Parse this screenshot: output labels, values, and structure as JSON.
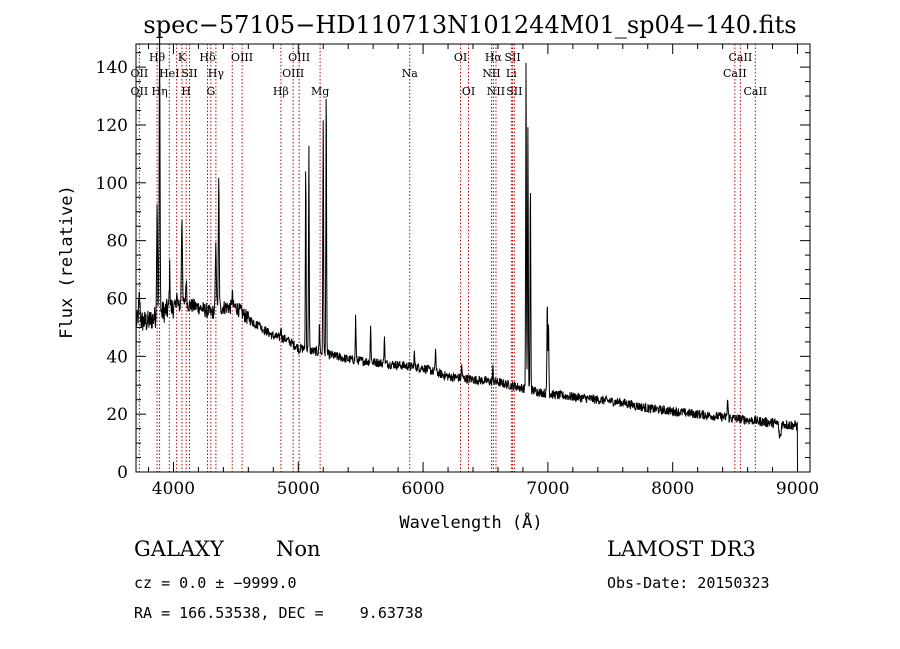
{
  "chart_data": {
    "type": "line",
    "title": "spec−57105−HD110713N101244M01_sp04−140.fits",
    "xlabel": "Wavelength (Å)",
    "ylabel": "Flux (relative)",
    "xlim": [
      3700,
      9100
    ],
    "ylim": [
      0,
      148
    ],
    "xticks": [
      4000,
      5000,
      6000,
      7000,
      8000,
      9000
    ],
    "yticks": [
      0,
      20,
      40,
      60,
      80,
      100,
      120,
      140
    ],
    "x_tick_labels": [
      "4000",
      "5000",
      "6000",
      "7000",
      "8000",
      "9000"
    ],
    "y_tick_labels": [
      "0",
      "20",
      "40",
      "60",
      "80",
      "100",
      "120",
      "140"
    ],
    "continuum": [
      [
        3700,
        52
      ],
      [
        3800,
        52
      ],
      [
        3900,
        55
      ],
      [
        4000,
        57
      ],
      [
        4100,
        58
      ],
      [
        4200,
        57
      ],
      [
        4300,
        55
      ],
      [
        4400,
        57
      ],
      [
        4500,
        57
      ],
      [
        4600,
        53
      ],
      [
        4700,
        50
      ],
      [
        4800,
        47
      ],
      [
        4900,
        46
      ],
      [
        5000,
        43
      ],
      [
        5200,
        41
      ],
      [
        5400,
        39
      ],
      [
        5600,
        38
      ],
      [
        5800,
        37
      ],
      [
        6000,
        36
      ],
      [
        6200,
        33
      ],
      [
        6400,
        32
      ],
      [
        6600,
        31
      ],
      [
        6800,
        29
      ],
      [
        7000,
        27
      ],
      [
        7200,
        26
      ],
      [
        7400,
        25
      ],
      [
        7600,
        24
      ],
      [
        7800,
        22
      ],
      [
        8000,
        21
      ],
      [
        8200,
        20
      ],
      [
        8400,
        19
      ],
      [
        8600,
        18
      ],
      [
        8800,
        17
      ],
      [
        9000,
        16
      ]
    ],
    "emission_peaks": [
      {
        "x": 3727,
        "y": 60,
        "w": 8
      },
      {
        "x": 3869,
        "y": 95,
        "w": 5
      },
      {
        "x": 3889,
        "y": 150,
        "w": 5
      },
      {
        "x": 3970,
        "y": 70,
        "w": 5
      },
      {
        "x": 4026,
        "y": 62,
        "w": 5
      },
      {
        "x": 4068,
        "y": 88,
        "w": 6
      },
      {
        "x": 4102,
        "y": 66,
        "w": 6
      },
      {
        "x": 4340,
        "y": 78,
        "w": 6
      },
      {
        "x": 4363,
        "y": 101,
        "w": 5
      },
      {
        "x": 4471,
        "y": 62,
        "w": 5
      },
      {
        "x": 4686,
        "y": 53,
        "w": 5
      },
      {
        "x": 4861,
        "y": 50,
        "w": 5
      },
      {
        "x": 5007,
        "y": 42,
        "w": 5
      },
      {
        "x": 5060,
        "y": 106,
        "w": 4
      },
      {
        "x": 5085,
        "y": 112,
        "w": 4
      },
      {
        "x": 5170,
        "y": 52,
        "w": 4
      },
      {
        "x": 5200,
        "y": 123,
        "w": 4
      },
      {
        "x": 5224,
        "y": 133,
        "w": 4
      },
      {
        "x": 5460,
        "y": 54,
        "w": 4
      },
      {
        "x": 5580,
        "y": 51,
        "w": 4
      },
      {
        "x": 5690,
        "y": 48,
        "w": 4
      },
      {
        "x": 5930,
        "y": 41,
        "w": 4
      },
      {
        "x": 6100,
        "y": 43,
        "w": 4
      },
      {
        "x": 6310,
        "y": 37,
        "w": 4
      },
      {
        "x": 6560,
        "y": 36,
        "w": 4
      },
      {
        "x": 6825,
        "y": 144,
        "w": 4
      },
      {
        "x": 6840,
        "y": 118,
        "w": 4
      },
      {
        "x": 6860,
        "y": 100,
        "w": 4
      },
      {
        "x": 6995,
        "y": 60,
        "w": 4
      },
      {
        "x": 7005,
        "y": 54,
        "w": 4
      },
      {
        "x": 8440,
        "y": 25,
        "w": 5
      }
    ],
    "spectral_lines": [
      {
        "x": 3727,
        "labels": [
          {
            "text": "OII",
            "row": 1
          },
          {
            "text": "OII",
            "row": 2
          }
        ]
      },
      {
        "x": 3869,
        "labels": [
          {
            "text": "Hθ",
            "row": 0
          }
        ]
      },
      {
        "x": 3889,
        "labels": [
          {
            "text": "Hη",
            "row": 2
          }
        ]
      },
      {
        "x": 3967,
        "labels": [
          {
            "text": "HeI",
            "row": 1
          }
        ]
      },
      {
        "x": 4026,
        "labels": []
      },
      {
        "x": 4068,
        "labels": [
          {
            "text": "K",
            "row": 0
          }
        ]
      },
      {
        "x": 4102,
        "labels": [
          {
            "text": "H",
            "row": 2
          }
        ]
      },
      {
        "x": 4129,
        "labels": [
          {
            "text": "SII",
            "row": 1
          }
        ]
      },
      {
        "x": 4273,
        "labels": [
          {
            "text": "Hδ",
            "row": 0
          }
        ]
      },
      {
        "x": 4300,
        "labels": [
          {
            "text": "G",
            "row": 2
          }
        ]
      },
      {
        "x": 4340,
        "labels": [
          {
            "text": "Hγ",
            "row": 1
          }
        ]
      },
      {
        "x": 4471,
        "labels": []
      },
      {
        "x": 4550,
        "labels": [
          {
            "text": "OIII",
            "row": 0
          }
        ]
      },
      {
        "x": 4861,
        "labels": [
          {
            "text": "Hβ",
            "row": 2
          }
        ]
      },
      {
        "x": 4959,
        "labels": [
          {
            "text": "OIII",
            "row": 1
          }
        ]
      },
      {
        "x": 5007,
        "labels": [
          {
            "text": "OIII",
            "row": 0
          }
        ]
      },
      {
        "x": 5175,
        "labels": [
          {
            "text": "Mg",
            "row": 2
          }
        ]
      },
      {
        "x": 5893,
        "labels": [
          {
            "text": "Na",
            "row": 1
          }
        ]
      },
      {
        "x": 6300,
        "labels": [
          {
            "text": "OI",
            "row": 0
          }
        ]
      },
      {
        "x": 6364,
        "labels": [
          {
            "text": "OI",
            "row": 2
          }
        ]
      },
      {
        "x": 6548,
        "labels": [
          {
            "text": "NII",
            "row": 1
          }
        ]
      },
      {
        "x": 6563,
        "labels": [
          {
            "text": "Hα",
            "row": 0
          }
        ]
      },
      {
        "x": 6584,
        "labels": [
          {
            "text": "NII",
            "row": 2
          }
        ]
      },
      {
        "x": 6707,
        "labels": [
          {
            "text": "Li",
            "row": 1
          }
        ]
      },
      {
        "x": 6717,
        "labels": [
          {
            "text": "SII",
            "row": 0
          }
        ]
      },
      {
        "x": 6731,
        "labels": [
          {
            "text": "SII",
            "row": 2
          }
        ]
      },
      {
        "x": 8498,
        "labels": [
          {
            "text": "CaII",
            "row": 1
          }
        ]
      },
      {
        "x": 8542,
        "labels": [
          {
            "text": "CaII",
            "row": 0
          }
        ]
      },
      {
        "x": 8662,
        "labels": [
          {
            "text": "CaII",
            "row": 2
          }
        ]
      }
    ]
  },
  "info": {
    "class": "GALAXY",
    "subclass": "Non",
    "survey": "LAMOST DR3",
    "cz": "cz = 0.0 ± −9999.0",
    "obs_date": "Obs-Date: 20150323",
    "ra_dec": "RA = 166.53538, DEC =    9.63738"
  }
}
